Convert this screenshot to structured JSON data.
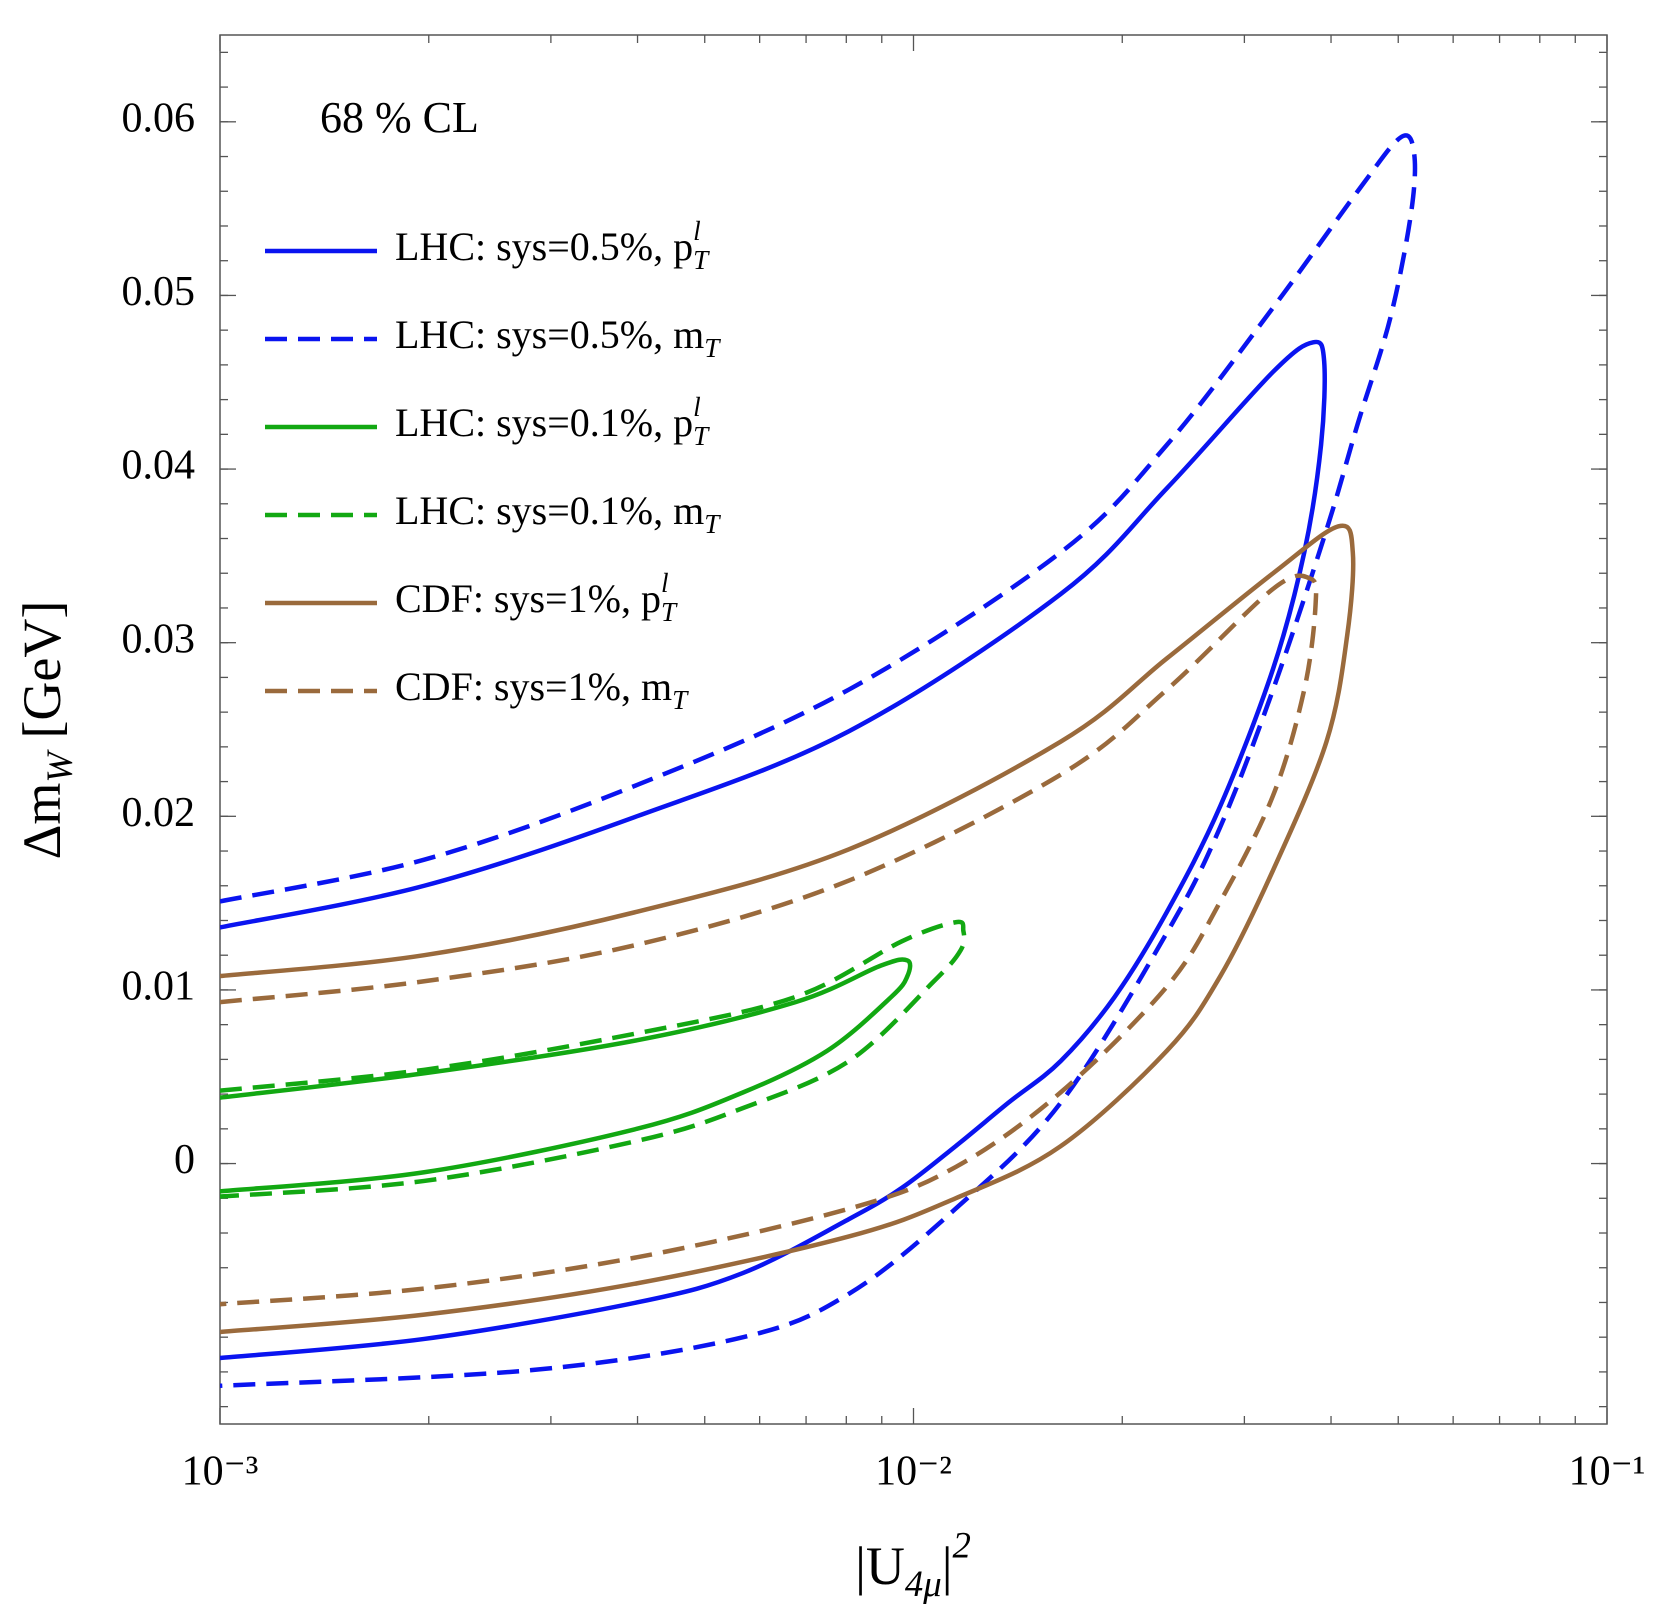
{
  "chart_data": {
    "type": "line",
    "annotation": "68 % CL",
    "xlabel": "|U_{4μ}|^2",
    "ylabel": "Δm_W [GeV]",
    "xscale": "log",
    "xlim": [
      0.001,
      0.1
    ],
    "xticks": [
      {
        "value": 0.001,
        "label": "10⁻³"
      },
      {
        "value": 0.01,
        "label": "10⁻²"
      },
      {
        "value": 0.1,
        "label": "10⁻¹"
      }
    ],
    "xminor": true,
    "ylim": [
      -0.015,
      0.065
    ],
    "yticks": [
      0,
      0.01,
      0.02,
      0.03,
      0.04,
      0.05,
      0.06
    ],
    "yminor_step": 0.002,
    "legend": "upper left",
    "series": [
      {
        "name": "LHC: sys=0.5%, p_T^l",
        "color": "#0a14f0",
        "style": "solid",
        "x": [
          0.001,
          0.00197,
          0.00399,
          0.00807,
          0.0163,
          0.0232,
          0.033,
          0.0377,
          0.0391,
          0.0387,
          0.0366,
          0.033,
          0.0277,
          0.0232,
          0.0195,
          0.0163,
          0.0137,
          0.0115,
          0.00962,
          0.00807,
          0.00568,
          0.00399,
          0.00197,
          0.001
        ],
        "values": [
          0.0136,
          0.016,
          0.02,
          0.0249,
          0.0328,
          0.0389,
          0.0456,
          0.0473,
          0.0462,
          0.0414,
          0.0352,
          0.0285,
          0.0206,
          0.0145,
          0.0096,
          0.0059,
          0.0035,
          0.001,
          -0.0014,
          -0.0032,
          -0.0063,
          -0.008,
          -0.0101,
          -0.0112
        ]
      },
      {
        "name": "LHC: sys=0.5%, m_T",
        "color": "#0a14f0",
        "style": "dashed",
        "x": [
          0.001,
          0.00197,
          0.00399,
          0.00807,
          0.0163,
          0.0232,
          0.033,
          0.0437,
          0.0504,
          0.0527,
          0.0522,
          0.0487,
          0.0437,
          0.0394,
          0.033,
          0.0277,
          0.0232,
          0.0163,
          0.0115,
          0.00807,
          0.00568,
          0.00281,
          0.001
        ],
        "values": [
          0.0151,
          0.0175,
          0.0218,
          0.0273,
          0.0352,
          0.0414,
          0.0493,
          0.056,
          0.0591,
          0.0582,
          0.0548,
          0.0487,
          0.0426,
          0.0365,
          0.0273,
          0.0194,
          0.0133,
          0.0035,
          -0.0026,
          -0.0075,
          -0.01,
          -0.0119,
          -0.0128
        ]
      },
      {
        "name": "LHC: sys=0.1%, p_T^l",
        "color": "#12a812",
        "style": "solid",
        "x": [
          0.001,
          0.00197,
          0.00399,
          0.00676,
          0.00897,
          0.0098,
          0.0098,
          0.00929,
          0.00751,
          0.00568,
          0.00399,
          0.00197,
          0.001
        ],
        "values": [
          0.0038,
          0.0052,
          0.0071,
          0.0093,
          0.0114,
          0.0117,
          0.0108,
          0.0096,
          0.0065,
          0.0041,
          0.002,
          -0.0005,
          -0.0016
        ]
      },
      {
        "name": "LHC: sys=0.1%, m_T",
        "color": "#12a812",
        "style": "dashed",
        "x": [
          0.001,
          0.00197,
          0.00399,
          0.00676,
          0.00962,
          0.0115,
          0.0118,
          0.0117,
          0.0107,
          0.00807,
          0.00568,
          0.00399,
          0.00197,
          0.001
        ],
        "values": [
          0.0042,
          0.0054,
          0.0075,
          0.0096,
          0.0128,
          0.0139,
          0.0134,
          0.0123,
          0.0105,
          0.0059,
          0.0032,
          0.0013,
          -0.001,
          -0.0019
        ]
      },
      {
        "name": "CDF: sys=1%, p_T^l",
        "color": "#9a6a3c",
        "style": "solid",
        "x": [
          0.001,
          0.00197,
          0.00399,
          0.00807,
          0.0163,
          0.0232,
          0.033,
          0.041,
          0.043,
          0.0422,
          0.0394,
          0.033,
          0.0277,
          0.0232,
          0.0163,
          0.0115,
          0.00807,
          0.00399,
          0.00197,
          0.001
        ],
        "values": [
          0.0108,
          0.012,
          0.0145,
          0.0181,
          0.0243,
          0.0291,
          0.034,
          0.0367,
          0.0352,
          0.0304,
          0.0243,
          0.0169,
          0.0108,
          0.0065,
          0.001,
          -0.002,
          -0.0042,
          -0.0069,
          -0.0087,
          -0.0097
        ]
      },
      {
        "name": "CDF: sys=1%, m_T",
        "color": "#9a6a3c",
        "style": "dashed",
        "x": [
          0.001,
          0.00197,
          0.00399,
          0.00807,
          0.0163,
          0.0232,
          0.033,
          0.0373,
          0.038,
          0.0366,
          0.033,
          0.0277,
          0.0232,
          0.0163,
          0.0115,
          0.00807,
          0.00399,
          0.00197,
          0.001
        ],
        "values": [
          0.0093,
          0.0105,
          0.0126,
          0.0163,
          0.0224,
          0.0273,
          0.0331,
          0.0337,
          0.0322,
          0.0273,
          0.0212,
          0.0151,
          0.0102,
          0.0041,
          -0.0002,
          -0.0026,
          -0.0054,
          -0.0072,
          -0.0081
        ]
      }
    ]
  }
}
